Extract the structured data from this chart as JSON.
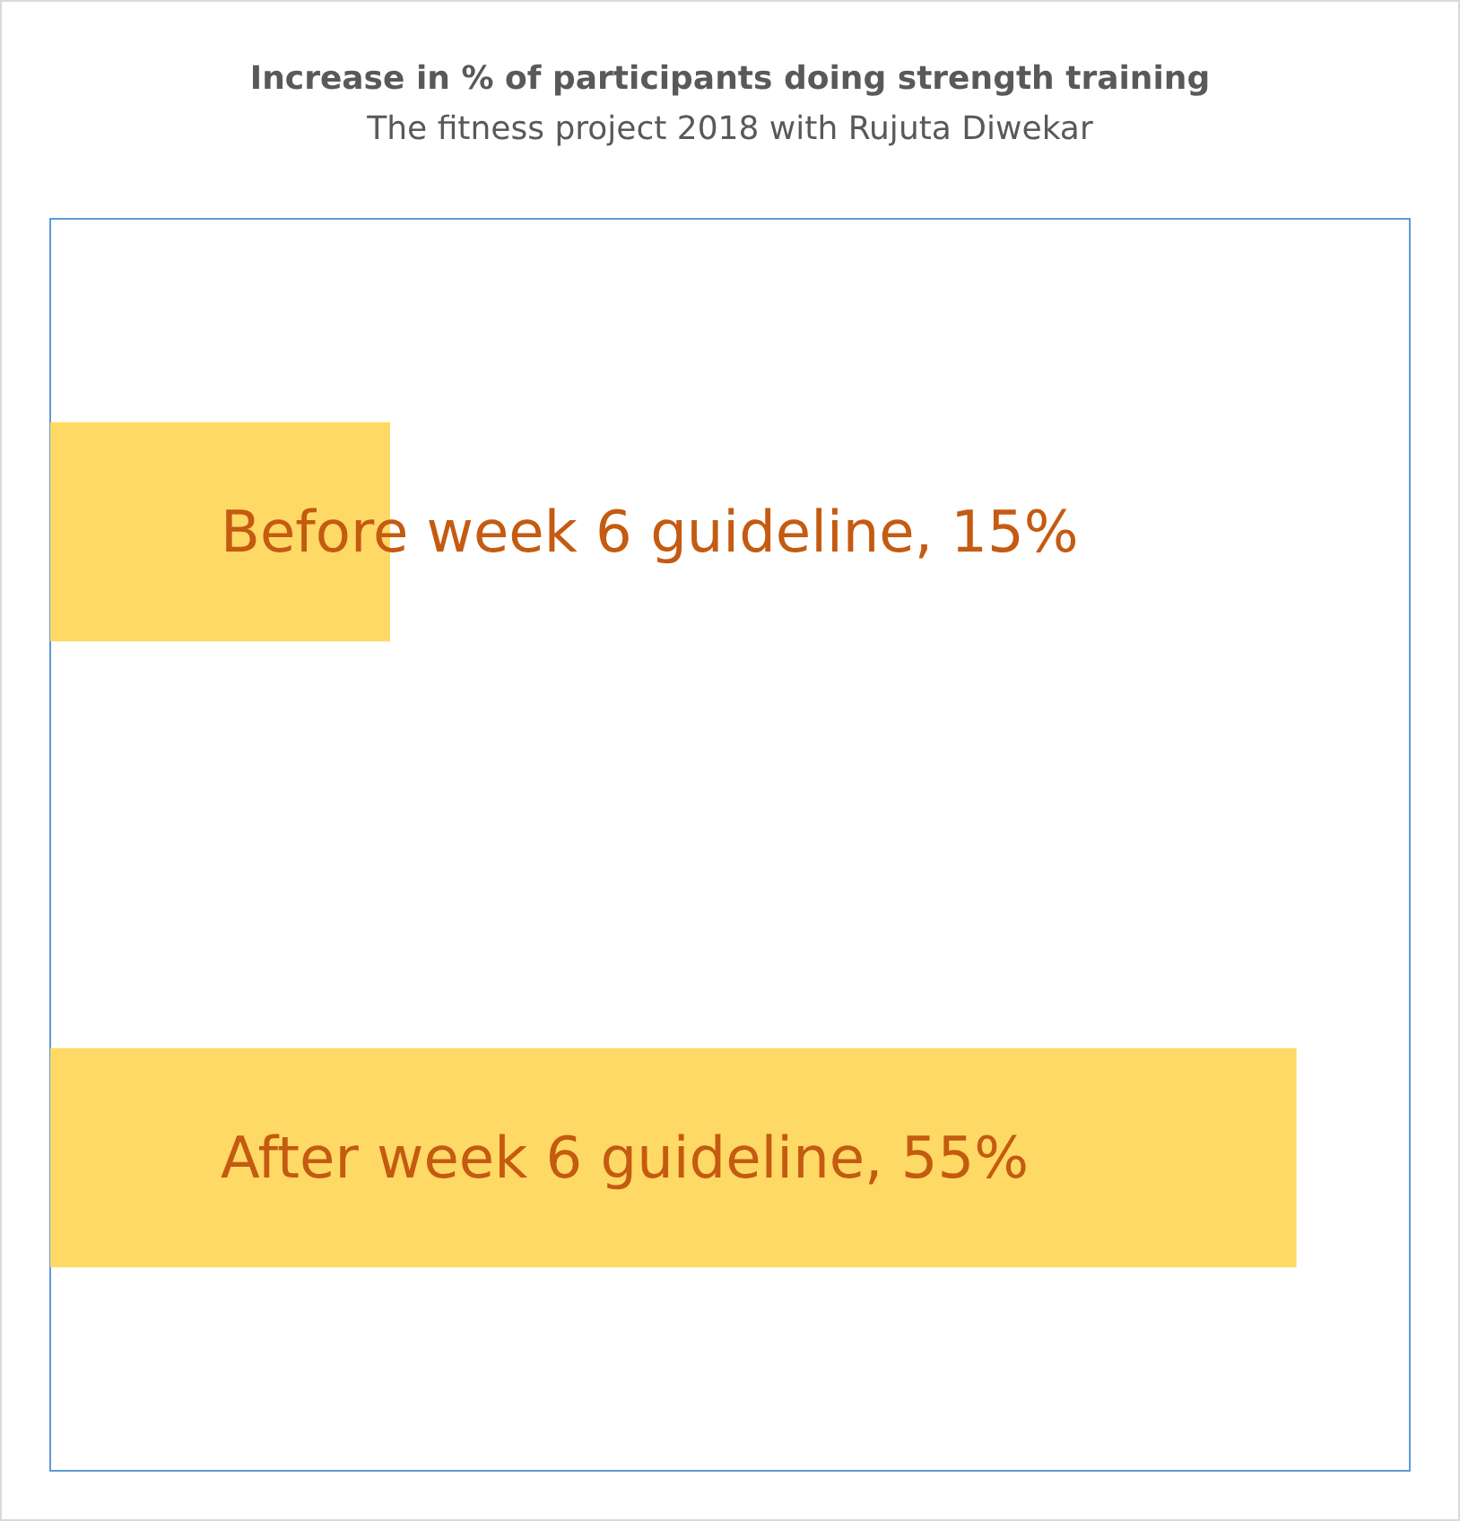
{
  "chart_data": {
    "type": "bar",
    "orientation": "horizontal",
    "title": "Increase in % of participants doing strength training",
    "subtitle": "The fitness project 2018 with Rujuta Diwekar",
    "categories": [
      null,
      null
    ],
    "values": [
      15,
      55
    ],
    "color": "#ffd966",
    "value_labels": [
      "Before week 6 guideline, 15%",
      "After week 6 guideline, 55%"
    ],
    "xlim": [
      0,
      60
    ],
    "tick_labels": false,
    "grid": false
  }
}
